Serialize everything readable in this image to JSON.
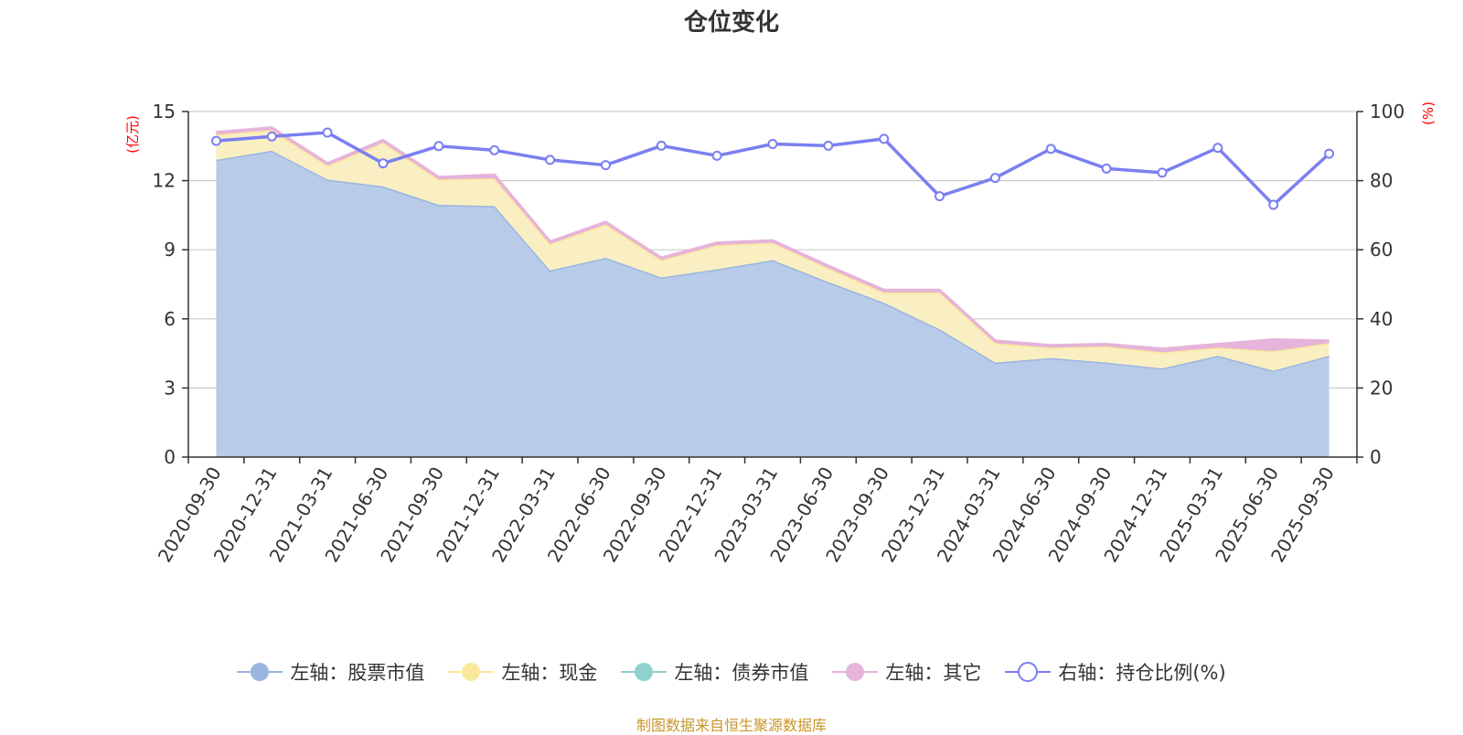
{
  "title": "仓位变化",
  "source_note": "制图数据来自恒生聚源数据库",
  "colors": {
    "stock": "#9ab6e0",
    "stock_fill": "#b8cbe9",
    "cash": "#fae89c",
    "cash_fill": "#faefc2",
    "bond": "#8fd1cf",
    "other": "#e6b3da",
    "ratio": "#7b7ff0",
    "grid": "#cccccc",
    "axis": "#333333",
    "unit": "#ff0000"
  },
  "legend": [
    {
      "label": "左轴：股票市值",
      "key": "stock",
      "shape": "dot"
    },
    {
      "label": "左轴：现金",
      "key": "cash",
      "shape": "dot"
    },
    {
      "label": "左轴：债券市值",
      "key": "bond",
      "shape": "dot"
    },
    {
      "label": "左轴：其它",
      "key": "other",
      "shape": "dot"
    },
    {
      "label": "右轴：持仓比例(%)",
      "key": "ratio",
      "shape": "ring"
    }
  ],
  "chart_data": {
    "type": "area",
    "title": "仓位变化",
    "categories": [
      "2020-09-30",
      "2020-12-31",
      "2021-03-31",
      "2021-06-30",
      "2021-09-30",
      "2021-12-31",
      "2022-03-31",
      "2022-06-30",
      "2022-09-30",
      "2022-12-31",
      "2023-03-31",
      "2023-06-30",
      "2023-09-30",
      "2023-12-31",
      "2024-03-31",
      "2024-06-30",
      "2024-09-30",
      "2024-12-31",
      "2025-03-31",
      "2025-06-30",
      "2025-09-30"
    ],
    "left_axis": {
      "label": "(亿元)",
      "ylim": [
        0,
        15
      ],
      "ticks": [
        "0",
        "3",
        "6",
        "9",
        "12",
        "15"
      ],
      "tick_values": [
        0,
        3,
        6,
        9,
        12,
        15
      ]
    },
    "right_axis": {
      "label": "(%)",
      "ylim": [
        0,
        100
      ],
      "ticks": [
        "0",
        "20",
        "40",
        "60",
        "80",
        "100"
      ],
      "tick_values": [
        0,
        20,
        40,
        60,
        80,
        100
      ]
    },
    "series": [
      {
        "name": "左轴：股票市值",
        "key": "stock",
        "axis": "left",
        "stack": true,
        "values": [
          12.9,
          13.3,
          12.05,
          11.75,
          10.95,
          10.9,
          8.1,
          8.65,
          7.8,
          8.15,
          8.55,
          7.6,
          6.7,
          5.55,
          4.1,
          4.3,
          4.1,
          3.85,
          4.4,
          3.75,
          4.4
        ]
      },
      {
        "name": "左轴：现金",
        "key": "cash",
        "axis": "left",
        "stack": true,
        "values": [
          1.1,
          0.9,
          0.6,
          1.9,
          1.1,
          1.2,
          1.15,
          1.45,
          0.75,
          1.05,
          0.75,
          0.6,
          0.45,
          1.6,
          0.85,
          0.45,
          0.7,
          0.7,
          0.35,
          0.85,
          0.55
        ]
      },
      {
        "name": "左轴：债券市值",
        "key": "bond",
        "axis": "left",
        "stack": true,
        "values": [
          0,
          0,
          0,
          0,
          0,
          0,
          0,
          0,
          0,
          0,
          0,
          0,
          0,
          0,
          0,
          0,
          0,
          0,
          0,
          0,
          0
        ]
      },
      {
        "name": "左轴：其它",
        "key": "other",
        "axis": "left",
        "stack": true,
        "values": [
          0.1,
          0.1,
          0.1,
          0.1,
          0.1,
          0.15,
          0.1,
          0.1,
          0.1,
          0.1,
          0.1,
          0.1,
          0.1,
          0.1,
          0.1,
          0.1,
          0.1,
          0.15,
          0.15,
          0.5,
          0.1
        ]
      },
      {
        "name": "右轴：持仓比例(%)",
        "key": "ratio",
        "axis": "right",
        "stack": false,
        "values": [
          91.5,
          92.8,
          93.9,
          85.0,
          90.0,
          88.8,
          86.0,
          84.5,
          90.1,
          87.2,
          90.6,
          90.1,
          92.1,
          75.5,
          80.8,
          89.2,
          83.5,
          82.3,
          89.5,
          73.0,
          87.8
        ]
      }
    ]
  }
}
